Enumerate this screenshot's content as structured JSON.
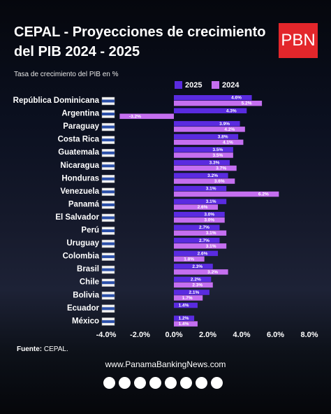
{
  "chart_data": {
    "type": "hbar",
    "title": "CEPAL - Proyecciones de crecimiento del PIB 2024 - 2025",
    "subtitle": "Tasa de crecimiento del PIB en %",
    "source_label": "Fuente:",
    "source": "CEPAL.",
    "website": "www.PanamaBankingNews.com",
    "categories": [
      "República Dominicana",
      "Argentina",
      "Paraguay",
      "Costa Rica",
      "Guatemala",
      "Nicaragua",
      "Honduras",
      "Venezuela",
      "Panamá",
      "El Salvador",
      "Perú",
      "Uruguay",
      "Colombia",
      "Brasil",
      "Chile",
      "Bolivia",
      "Ecuador",
      "México"
    ],
    "series": [
      {
        "name": "2025",
        "color": "#5a2be0",
        "values": [
          4.6,
          4.3,
          3.9,
          3.8,
          3.5,
          3.3,
          3.2,
          3.1,
          3.1,
          3.0,
          2.7,
          2.7,
          2.6,
          2.3,
          2.2,
          2.1,
          1.4,
          1.2
        ],
        "value_labels": [
          "4.6%",
          "4.3%",
          "3.9%",
          "3.8%",
          "3.5%",
          "3.3%",
          "3.2%",
          "3.1%",
          "3.1%",
          "3.0%",
          "2.7%",
          "2.7%",
          "2.6%",
          "2.3%",
          "2.2%",
          "2.1%",
          "1.4%",
          "1.2%"
        ]
      },
      {
        "name": "2024",
        "color": "#c56ff0",
        "values": [
          5.2,
          -3.2,
          4.2,
          4.1,
          3.5,
          3.7,
          3.6,
          6.2,
          2.6,
          3.0,
          3.1,
          3.1,
          1.8,
          3.2,
          2.3,
          1.7,
          null,
          1.4
        ],
        "value_labels": [
          "5.2%",
          "-3.2%",
          "4.2%",
          "4.1%",
          "3.5%",
          "3.7%",
          "3.6%",
          "6.2%",
          "2.6%",
          "3.0%",
          "3.1%",
          "3.1%",
          "1.8%",
          "3.2%",
          "2.3%",
          "1.7%",
          null,
          "1.4%"
        ]
      }
    ],
    "xlim": [
      -4,
      8
    ],
    "xticks": [
      {
        "value": -4,
        "label": "-4.0%"
      },
      {
        "value": -2,
        "label": "-2.0%"
      },
      {
        "value": 0,
        "label": "0.0%"
      },
      {
        "value": 2,
        "label": "2.0%"
      },
      {
        "value": 4,
        "label": "4.0%"
      },
      {
        "value": 6,
        "label": "6.0%"
      },
      {
        "value": 8,
        "label": "8.0%"
      }
    ]
  }
}
